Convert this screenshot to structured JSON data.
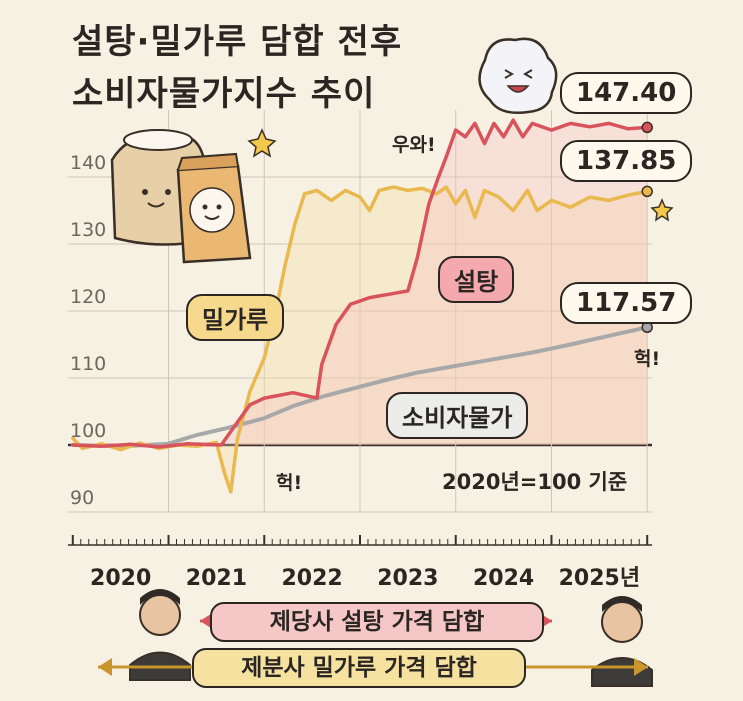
{
  "title": {
    "line1": "설탕·밀가루 담합 전후",
    "line2": "소비자물가지수 추이"
  },
  "callouts": {
    "sugar_end": "147.40",
    "flour_end": "137.85",
    "cpi_end": "117.57"
  },
  "series_tags": {
    "sugar": "설탕",
    "flour": "밀가루",
    "cpi": "소비자물가"
  },
  "exclamations": {
    "wow": "우와!",
    "heok_flour": "헉!",
    "heok_cpi": "헉!"
  },
  "base_note": "2020년=100 기준",
  "bands": {
    "sugar_collusion": "제당사 설탕 가격 담합",
    "flour_collusion": "제분사 밀가루 가격 담합"
  },
  "colors": {
    "sugar": "#d9535c",
    "flour": "#e9b84f",
    "cpi": "#a8a8a8",
    "grid": "#cfc6b8",
    "sugar_band": "#f6c7c7",
    "flour_band": "#f5e1a0"
  },
  "chart_data": {
    "type": "line",
    "xlabel": "",
    "ylabel": "",
    "ylim": [
      90,
      150
    ],
    "xlim": [
      2019.95,
      2026.05
    ],
    "y_ticks": [
      90,
      100,
      110,
      120,
      130,
      140
    ],
    "x_ticks": [
      {
        "value": 2020.5,
        "label": "2020"
      },
      {
        "value": 2021.5,
        "label": "2021"
      },
      {
        "value": 2022.5,
        "label": "2022"
      },
      {
        "value": 2023.5,
        "label": "2023"
      },
      {
        "value": 2024.5,
        "label": "2024"
      },
      {
        "value": 2025.5,
        "label": "2025년"
      }
    ],
    "series": [
      {
        "key": "cpi",
        "name": "소비자물가",
        "points": [
          [
            2020.0,
            100
          ],
          [
            2020.5,
            99.8
          ],
          [
            2021.0,
            100.2
          ],
          [
            2021.3,
            101.5
          ],
          [
            2021.6,
            102.5
          ],
          [
            2022.0,
            104
          ],
          [
            2022.3,
            105.8
          ],
          [
            2022.6,
            107.2
          ],
          [
            2023.0,
            108.7
          ],
          [
            2023.3,
            109.8
          ],
          [
            2023.6,
            110.8
          ],
          [
            2024.0,
            111.8
          ],
          [
            2024.4,
            112.8
          ],
          [
            2024.8,
            113.8
          ],
          [
            2025.2,
            115
          ],
          [
            2025.6,
            116.3
          ],
          [
            2026.0,
            117.57
          ]
        ]
      },
      {
        "key": "flour",
        "name": "밀가루",
        "points": [
          [
            2020.0,
            101
          ],
          [
            2020.1,
            99.5
          ],
          [
            2020.3,
            100.2
          ],
          [
            2020.5,
            99.3
          ],
          [
            2020.7,
            100.3
          ],
          [
            2020.9,
            99.5
          ],
          [
            2021.1,
            100
          ],
          [
            2021.3,
            99.8
          ],
          [
            2021.5,
            100.4
          ],
          [
            2021.58,
            96
          ],
          [
            2021.65,
            93
          ],
          [
            2021.72,
            101
          ],
          [
            2021.85,
            108
          ],
          [
            2022.0,
            113
          ],
          [
            2022.12,
            120
          ],
          [
            2022.22,
            127
          ],
          [
            2022.32,
            133
          ],
          [
            2022.42,
            137.5
          ],
          [
            2022.55,
            138
          ],
          [
            2022.7,
            136.5
          ],
          [
            2022.85,
            138
          ],
          [
            2023.0,
            137
          ],
          [
            2023.1,
            135
          ],
          [
            2023.2,
            138
          ],
          [
            2023.35,
            138.5
          ],
          [
            2023.5,
            138
          ],
          [
            2023.65,
            138.3
          ],
          [
            2023.8,
            137.5
          ],
          [
            2023.9,
            138.5
          ],
          [
            2024.0,
            136
          ],
          [
            2024.1,
            138
          ],
          [
            2024.2,
            134
          ],
          [
            2024.3,
            138
          ],
          [
            2024.45,
            137
          ],
          [
            2024.6,
            135
          ],
          [
            2024.75,
            138
          ],
          [
            2024.85,
            135
          ],
          [
            2025.0,
            136.5
          ],
          [
            2025.2,
            135.5
          ],
          [
            2025.4,
            137
          ],
          [
            2025.6,
            136.5
          ],
          [
            2025.8,
            137.3
          ],
          [
            2026.0,
            137.85
          ]
        ]
      },
      {
        "key": "sugar",
        "name": "설탕",
        "points": [
          [
            2020.0,
            100
          ],
          [
            2020.3,
            99.8
          ],
          [
            2020.6,
            100.1
          ],
          [
            2020.9,
            99.7
          ],
          [
            2021.2,
            100.2
          ],
          [
            2021.55,
            100
          ],
          [
            2021.7,
            103
          ],
          [
            2021.85,
            106
          ],
          [
            2022.0,
            107
          ],
          [
            2022.3,
            107.8
          ],
          [
            2022.55,
            107
          ],
          [
            2022.6,
            112
          ],
          [
            2022.75,
            118
          ],
          [
            2022.9,
            121
          ],
          [
            2023.1,
            122
          ],
          [
            2023.3,
            122.5
          ],
          [
            2023.5,
            123
          ],
          [
            2023.6,
            128
          ],
          [
            2023.72,
            136
          ],
          [
            2023.82,
            140
          ],
          [
            2023.9,
            143
          ],
          [
            2024.0,
            147
          ],
          [
            2024.1,
            146
          ],
          [
            2024.2,
            148
          ],
          [
            2024.3,
            145
          ],
          [
            2024.4,
            148
          ],
          [
            2024.5,
            146
          ],
          [
            2024.6,
            148.5
          ],
          [
            2024.7,
            146
          ],
          [
            2024.8,
            148
          ],
          [
            2025.0,
            147
          ],
          [
            2025.2,
            148
          ],
          [
            2025.4,
            147.5
          ],
          [
            2025.6,
            148
          ],
          [
            2025.8,
            147.2
          ],
          [
            2026.0,
            147.4
          ]
        ]
      }
    ]
  }
}
